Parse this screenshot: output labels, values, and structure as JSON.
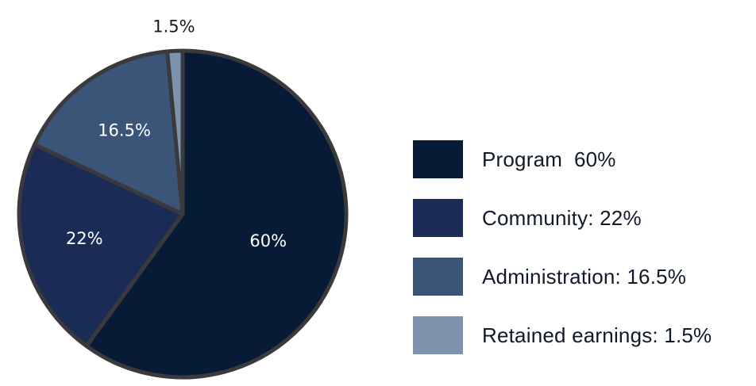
{
  "chart_data": {
    "type": "pie",
    "title": "",
    "slices": [
      {
        "name": "Program",
        "value": 60,
        "label": "60%",
        "legend": "Program  60%",
        "color": "#071a36"
      },
      {
        "name": "Community",
        "value": 22,
        "label": "22%",
        "legend": "Community: 22%",
        "color": "#1a2c56"
      },
      {
        "name": "Administration",
        "value": 16.5,
        "label": "16.5%",
        "legend": "Administration: 16.5%",
        "color": "#3b5578"
      },
      {
        "name": "Retained earnings",
        "value": 1.5,
        "label": "1.5%",
        "legend": "Retained earnings: 1.5%",
        "color": "#7d93ae"
      }
    ],
    "legend_position": "right",
    "border_color": "#3a3a3c"
  }
}
